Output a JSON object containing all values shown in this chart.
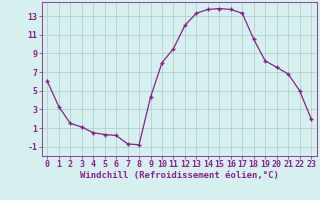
{
  "x": [
    0,
    1,
    2,
    3,
    4,
    5,
    6,
    7,
    8,
    9,
    10,
    11,
    12,
    13,
    14,
    15,
    16,
    17,
    18,
    19,
    20,
    21,
    22,
    23
  ],
  "y": [
    6.0,
    3.3,
    1.5,
    1.1,
    0.5,
    0.3,
    0.2,
    -0.7,
    -0.8,
    4.3,
    8.0,
    9.5,
    12.0,
    13.3,
    13.7,
    13.8,
    13.7,
    13.3,
    10.5,
    8.2,
    7.5,
    6.8,
    5.0,
    2.0
  ],
  "line_color": "#882288",
  "marker": "+",
  "bg_color": "#d6f0f0",
  "grid_color": "#b0c8c8",
  "xlabel": "Windchill (Refroidissement éolien,°C)",
  "xlim": [
    -0.5,
    23.5
  ],
  "ylim": [
    -2.0,
    14.5
  ],
  "yticks": [
    -1,
    1,
    3,
    5,
    7,
    9,
    11,
    13
  ],
  "xticks": [
    0,
    1,
    2,
    3,
    4,
    5,
    6,
    7,
    8,
    9,
    10,
    11,
    12,
    13,
    14,
    15,
    16,
    17,
    18,
    19,
    20,
    21,
    22,
    23
  ],
  "axis_color": "#882288",
  "tick_color": "#882288",
  "label_fontsize": 6.5,
  "tick_fontsize": 6.0
}
